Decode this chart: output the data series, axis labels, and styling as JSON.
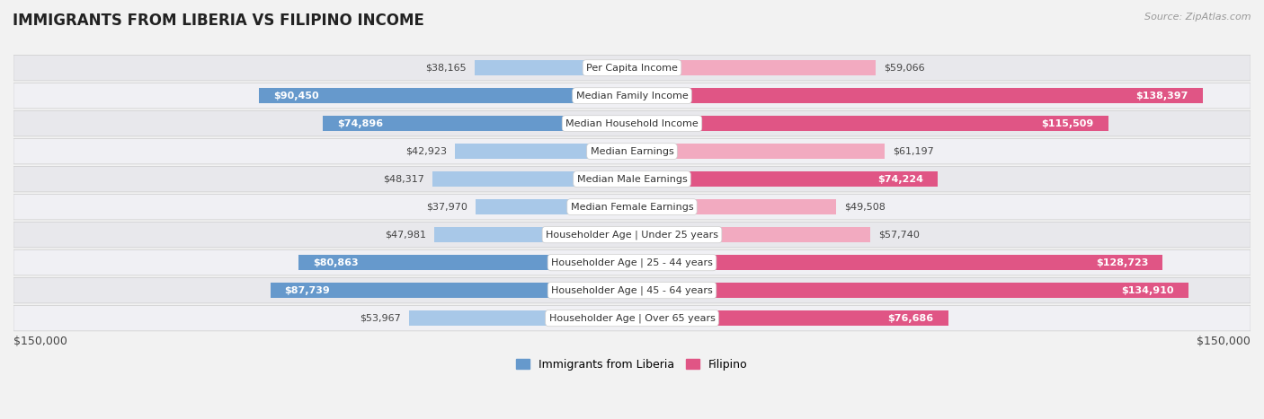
{
  "title": "IMMIGRANTS FROM LIBERIA VS FILIPINO INCOME",
  "source": "Source: ZipAtlas.com",
  "categories": [
    "Per Capita Income",
    "Median Family Income",
    "Median Household Income",
    "Median Earnings",
    "Median Male Earnings",
    "Median Female Earnings",
    "Householder Age | Under 25 years",
    "Householder Age | 25 - 44 years",
    "Householder Age | 45 - 64 years",
    "Householder Age | Over 65 years"
  ],
  "liberia_values": [
    38165,
    90450,
    74896,
    42923,
    48317,
    37970,
    47981,
    80863,
    87739,
    53967
  ],
  "filipino_values": [
    59066,
    138397,
    115509,
    61197,
    74224,
    49508,
    57740,
    128723,
    134910,
    76686
  ],
  "liberia_labels": [
    "$38,165",
    "$90,450",
    "$74,896",
    "$42,923",
    "$48,317",
    "$37,970",
    "$47,981",
    "$80,863",
    "$87,739",
    "$53,967"
  ],
  "filipino_labels": [
    "$59,066",
    "$138,397",
    "$115,509",
    "$61,197",
    "$74,224",
    "$49,508",
    "$57,740",
    "$128,723",
    "$134,910",
    "$76,686"
  ],
  "liberia_color_light": "#a8c8e8",
  "liberia_color_dark": "#6699cc",
  "filipino_color_light": "#f2aac0",
  "filipino_color_dark": "#e05585",
  "max_value": 150000,
  "label_threshold": 65000,
  "x_label_left": "$150,000",
  "x_label_right": "$150,000",
  "legend_liberia": "Immigrants from Liberia",
  "legend_filipino": "Filipino",
  "bg_color": "#f2f2f2",
  "row_colors": [
    "#e8e8ec",
    "#f0f0f4"
  ],
  "title_color": "#222222",
  "source_color": "#999999",
  "label_dark_color": "#444444",
  "label_white_color": "#ffffff"
}
